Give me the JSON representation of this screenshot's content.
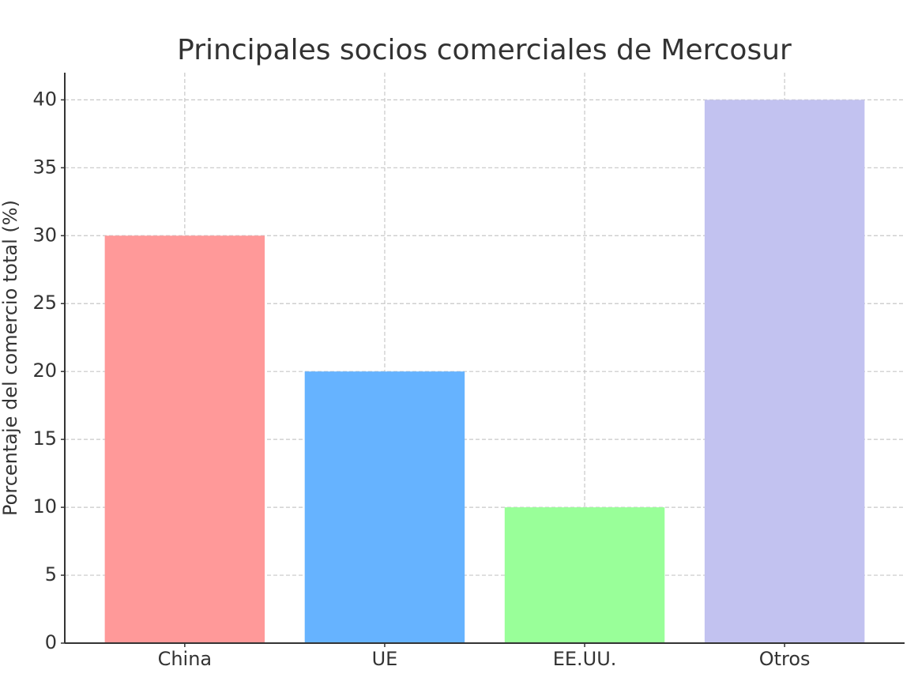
{
  "chart_data": {
    "type": "bar",
    "title": "Principales socios comerciales de Mercosur",
    "y_label": "Porcentaje del comercio total (%)",
    "categories": [
      "China",
      "UE",
      "EE.UU.",
      "Otros"
    ],
    "values": [
      30,
      20,
      10,
      40
    ],
    "colors": [
      "#ff9999",
      "#66b3ff",
      "#99ff99",
      "#c2c2f0"
    ],
    "ylim": [
      0,
      42
    ],
    "yticks": [
      0,
      5,
      10,
      15,
      20,
      25,
      30,
      35,
      40
    ],
    "grid": true
  }
}
